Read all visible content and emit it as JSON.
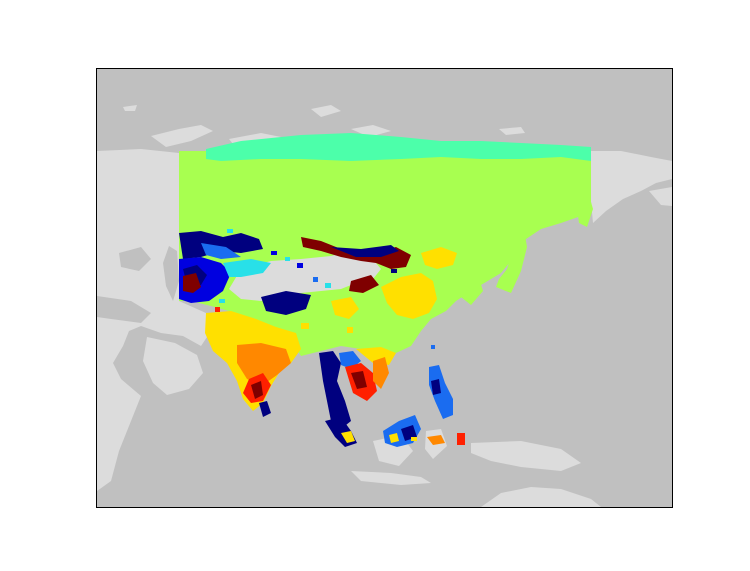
{
  "map": {
    "projection": "equidistant-cylindrical",
    "region": "Asia",
    "colors": {
      "ocean": "#c0c0c0",
      "land_outside": "#dcdcdc",
      "frame": "#000000"
    },
    "colormap": "jet",
    "colormap_stops": {
      "dark_navy": "#00007f",
      "blue": "#0000e0",
      "mid_blue": "#1a6cf0",
      "cyan": "#28e0e8",
      "aquamarine": "#4cffaa",
      "yellow_green": "#a8ff50",
      "yellow": "#ffe000",
      "orange": "#ff8800",
      "red": "#ff2000",
      "dark_red": "#7f0000"
    }
  }
}
